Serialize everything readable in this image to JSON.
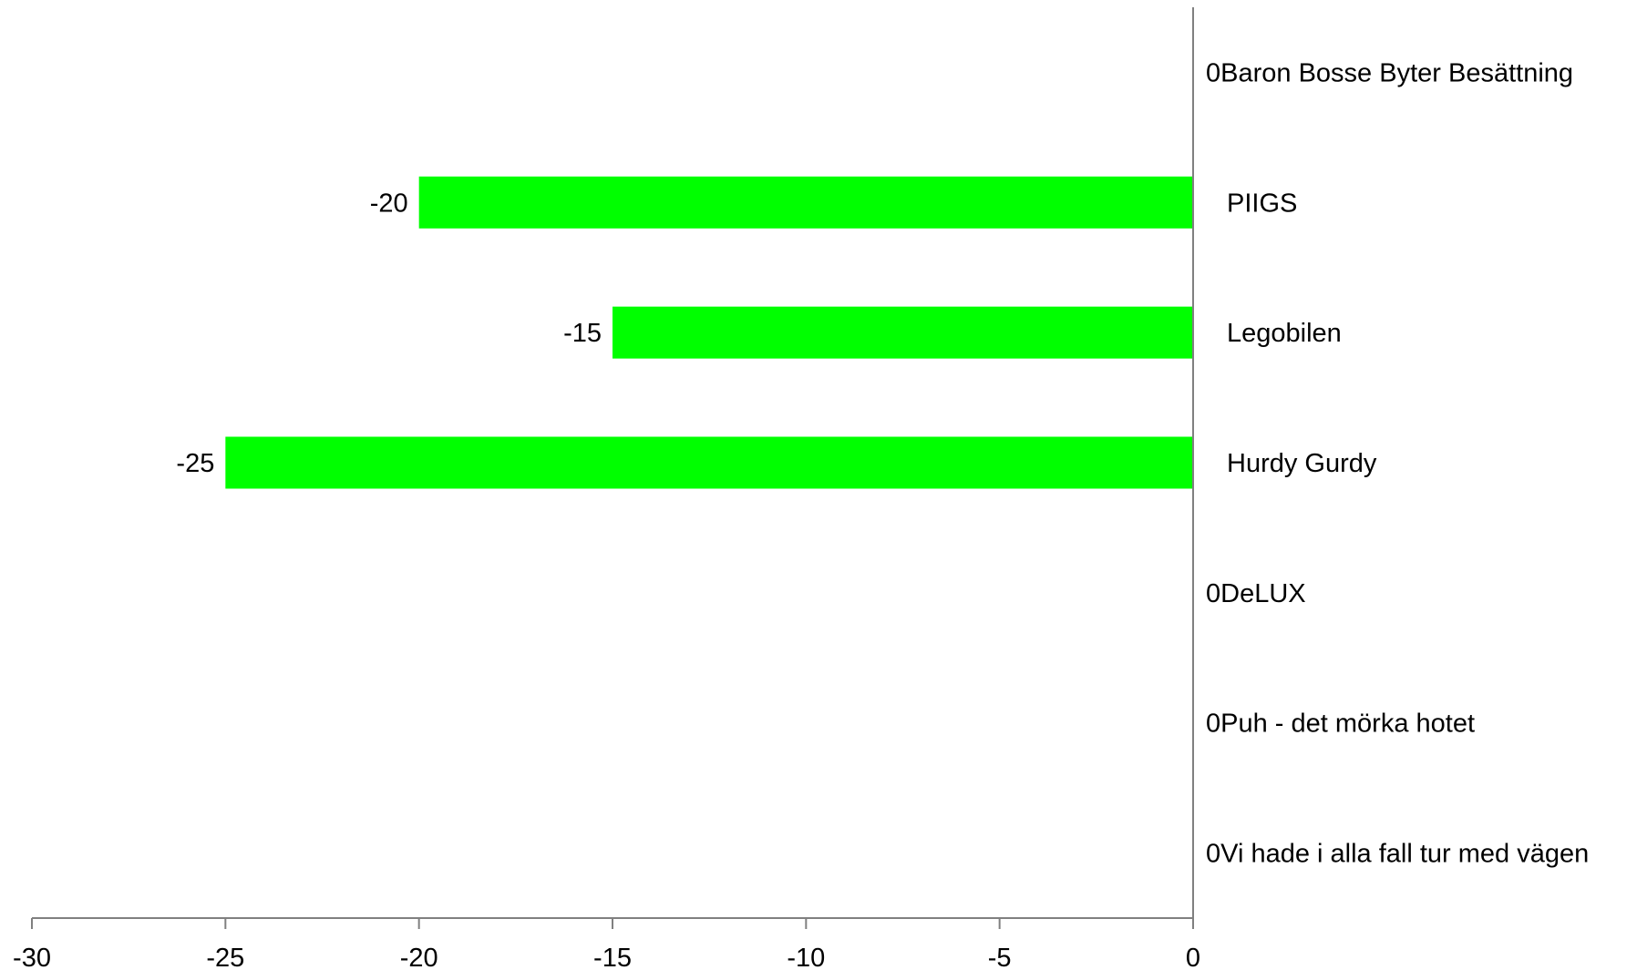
{
  "chart_data": {
    "type": "bar",
    "orientation": "horizontal",
    "title": "",
    "xlabel": "",
    "ylabel": "",
    "categories": [
      "Baron Bosse Byter Besättning",
      "PIIGS",
      "Legobilen",
      "Hurdy Gurdy",
      "DeLUX",
      "Puh - det mörka hotet",
      "Vi hade i alla fall tur med vägen"
    ],
    "values": [
      0,
      -20,
      -15,
      -25,
      0,
      0,
      0
    ],
    "data_labels": [
      "0",
      "-20",
      "-15",
      "-25",
      "0",
      "0",
      "0"
    ],
    "xlim": [
      -30,
      0
    ],
    "x_ticks": [
      -30,
      -25,
      -20,
      -15,
      -10,
      -5,
      0
    ],
    "x_tick_labels": [
      "-30",
      "-25",
      "-20",
      "-15",
      "-10",
      "-5",
      "0"
    ],
    "bar_color": "#00ff00",
    "axis_color": "#808080",
    "grid": false,
    "legend": "none"
  }
}
